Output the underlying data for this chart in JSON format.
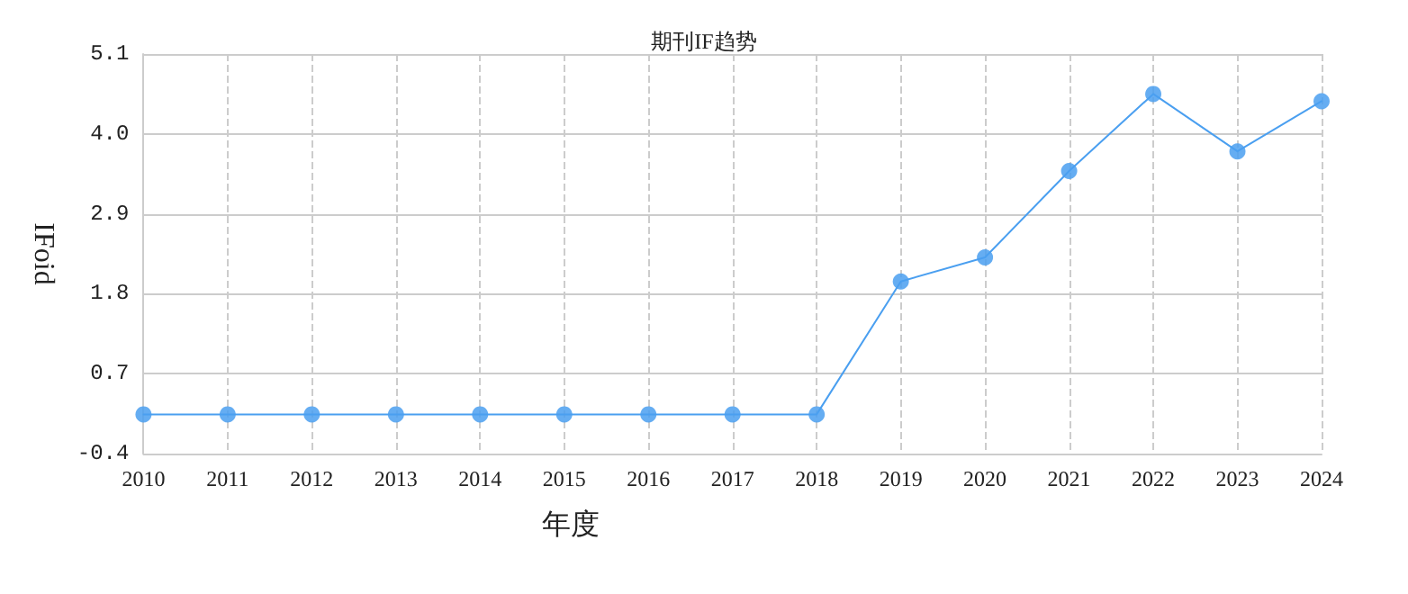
{
  "chart_data": {
    "type": "line",
    "title": "期刊IF趋势",
    "xlabel": "年度",
    "ylabel": "IFoid",
    "categories": [
      "2010",
      "2011",
      "2012",
      "2013",
      "2014",
      "2015",
      "2016",
      "2017",
      "2018",
      "2019",
      "2020",
      "2021",
      "2022",
      "2023",
      "2024"
    ],
    "series": [
      {
        "color": "#4a9ff0",
        "values": [
          0.14,
          0.14,
          0.14,
          0.14,
          0.14,
          0.14,
          0.14,
          0.14,
          0.14,
          1.97,
          2.3,
          3.49,
          4.55,
          3.76,
          4.45
        ]
      }
    ],
    "ylim": [
      -0.4,
      5.1
    ],
    "yticks": [
      -0.4,
      0.7,
      1.8,
      2.9,
      {
        "value": 4,
        "label": "4.0"
      },
      5.1
    ],
    "grid": true,
    "marker": "circle",
    "line_style": "solid"
  }
}
